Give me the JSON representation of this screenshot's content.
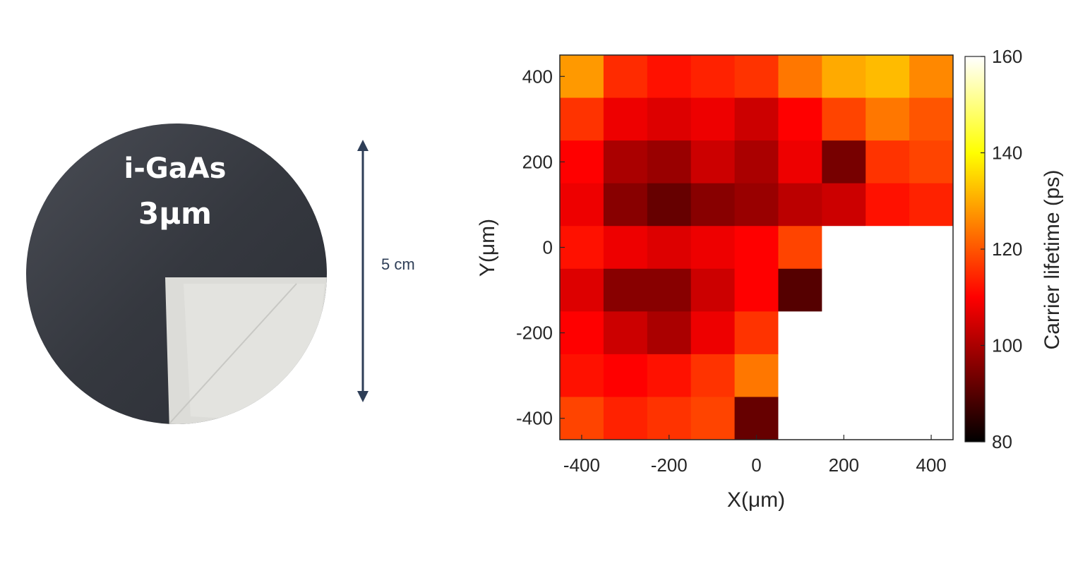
{
  "photo": {
    "material": "i-GaAs",
    "thickness": "3µm",
    "scale_label": "5 cm",
    "colors": {
      "wafer": "#3a3d44",
      "piece": "#dcdcd8",
      "arrow": "#2e3e57"
    }
  },
  "chart_data": {
    "type": "heatmap",
    "xlabel": "X(μm)",
    "ylabel": "Y(μm)",
    "colorbar_label": "Carrier lifetime (ps)",
    "xlim": [
      -450,
      450
    ],
    "ylim": [
      -450,
      450
    ],
    "clim": [
      80,
      160
    ],
    "xticks": [
      "-400",
      "-200",
      "0",
      "200",
      "400"
    ],
    "yticks": [
      "400",
      "200",
      "0",
      "-200",
      "-400"
    ],
    "cticks": [
      "160",
      "140",
      "120",
      "100",
      "80"
    ],
    "colormap": "hot",
    "grid_step_um": 100,
    "x": [
      -400,
      -300,
      -200,
      -100,
      0,
      100,
      200,
      300,
      400
    ],
    "y": [
      400,
      300,
      200,
      100,
      0,
      -100,
      -200,
      -300,
      -400
    ],
    "z": [
      [
        128,
        115,
        112,
        114,
        116,
        124,
        130,
        132,
        126
      ],
      [
        116,
        108,
        106,
        108,
        104,
        110,
        118,
        124,
        120
      ],
      [
        110,
        100,
        98,
        104,
        100,
        108,
        94,
        116,
        118
      ],
      [
        108,
        96,
        92,
        96,
        98,
        102,
        104,
        112,
        114
      ],
      [
        112,
        108,
        106,
        108,
        110,
        118,
        160,
        160,
        160
      ],
      [
        106,
        96,
        96,
        104,
        110,
        90,
        160,
        160,
        160
      ],
      [
        110,
        104,
        100,
        108,
        116,
        160,
        160,
        160,
        160
      ],
      [
        112,
        110,
        112,
        116,
        124,
        160,
        160,
        160,
        160
      ],
      [
        118,
        114,
        116,
        118,
        92,
        160,
        160,
        160,
        160
      ]
    ]
  }
}
